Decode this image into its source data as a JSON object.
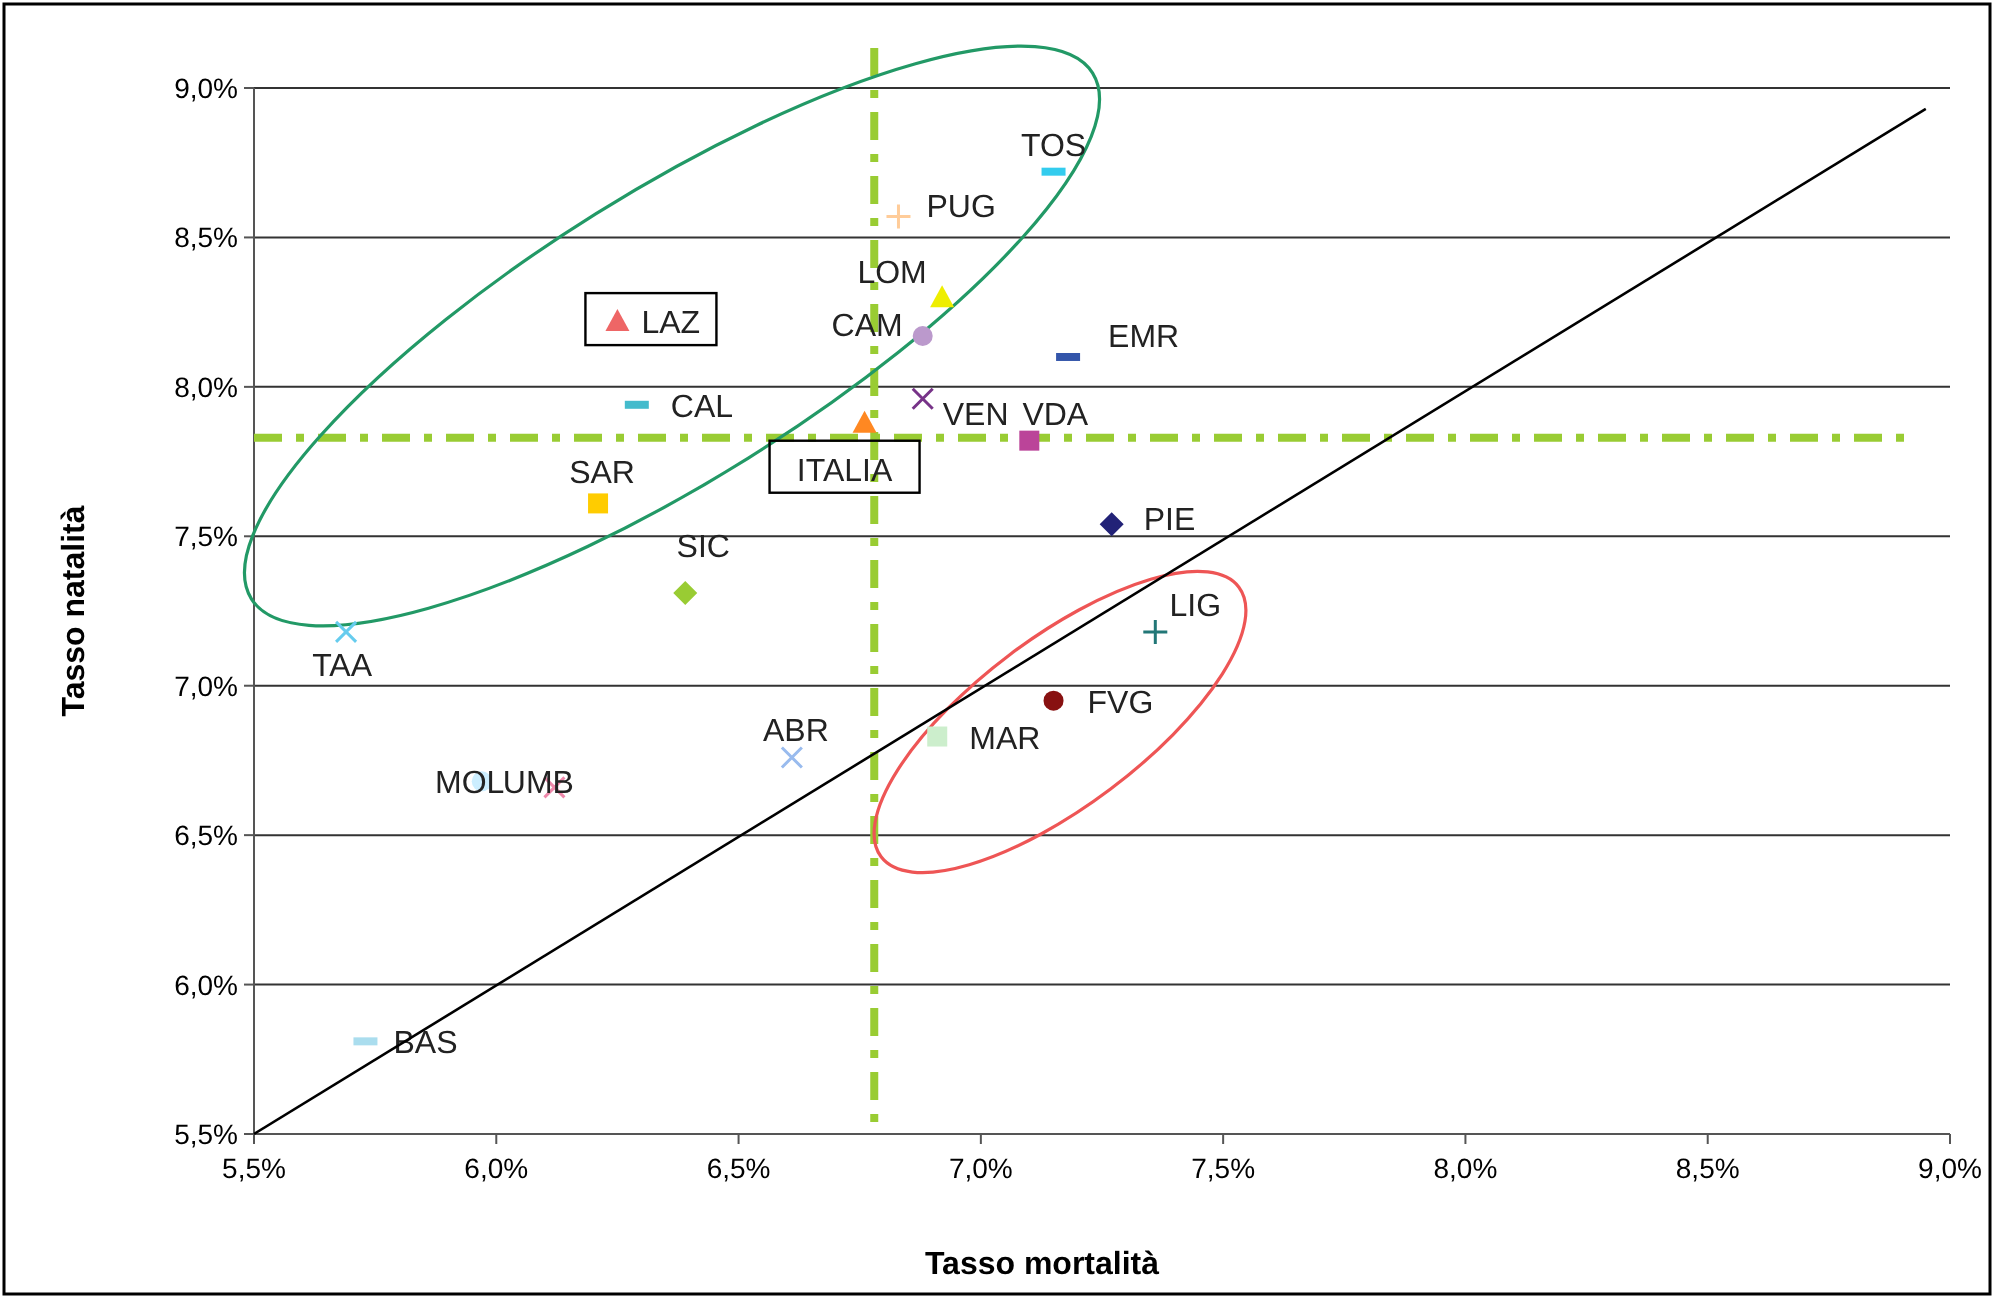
{
  "chart_data": {
    "type": "scatter",
    "xlabel": "Tasso mortalità",
    "ylabel": "Tasso natalità",
    "xlim": [
      5.5,
      9.0
    ],
    "ylim": [
      5.5,
      9.0
    ],
    "xticks": [
      {
        "value": 5.5,
        "label": "5,5%"
      },
      {
        "value": 6.0,
        "label": "6,0%"
      },
      {
        "value": 6.5,
        "label": "6,5%"
      },
      {
        "value": 7.0,
        "label": "7,0%"
      },
      {
        "value": 7.5,
        "label": "7,5%"
      },
      {
        "value": 8.0,
        "label": "8,0%"
      },
      {
        "value": 8.5,
        "label": "8,5%"
      },
      {
        "value": 9.0,
        "label": "9,0%"
      }
    ],
    "yticks": [
      {
        "value": 5.5,
        "label": "5,5%"
      },
      {
        "value": 6.0,
        "label": "6,0%"
      },
      {
        "value": 6.5,
        "label": "6,5%"
      },
      {
        "value": 7.0,
        "label": "7,0%"
      },
      {
        "value": 7.5,
        "label": "7,5%"
      },
      {
        "value": 8.0,
        "label": "8,0%"
      },
      {
        "value": 8.5,
        "label": "8,5%"
      },
      {
        "value": 9.0,
        "label": "9,0%"
      }
    ],
    "grid": "y",
    "ref_lines": [
      {
        "axis": "x",
        "value": 6.78,
        "color": "#99cc33",
        "line_style": "dashdot"
      },
      {
        "axis": "y",
        "value": 7.83,
        "color": "#99cc33",
        "line_style": "dashdot"
      }
    ],
    "series": [
      {
        "name": "TOS",
        "color": "#33ccee",
        "x": [
          7.15
        ],
        "values": [
          8.72
        ]
      },
      {
        "name": "PUG",
        "color": "#ffcc99",
        "marker": "plus",
        "x": [
          6.83
        ],
        "values": [
          8.57
        ]
      },
      {
        "name": "LOM",
        "color": "#eeee00",
        "marker": "triangle",
        "x": [
          6.92
        ],
        "values": [
          8.3
        ]
      },
      {
        "name": "CAM",
        "color": "#bb99cc",
        "marker": "circle",
        "x": [
          6.88
        ],
        "values": [
          8.17
        ]
      },
      {
        "name": "LAZ",
        "color": "#ee6666",
        "marker": "triangle",
        "x": [
          6.25
        ],
        "values": [
          8.22
        ]
      },
      {
        "name": "EMR",
        "color": "#3355aa",
        "x": [
          7.18
        ],
        "values": [
          8.1
        ]
      },
      {
        "name": "CAL",
        "color": "#44bbcc",
        "x": [
          6.29
        ],
        "values": [
          7.94
        ]
      },
      {
        "name": "VEN",
        "color": "#773388",
        "marker": "cross",
        "x": [
          6.88
        ],
        "values": [
          7.96
        ]
      },
      {
        "name": "ITALIA",
        "color": "#ff8822",
        "marker": "triangle",
        "x": [
          6.76
        ],
        "values": [
          7.88
        ]
      },
      {
        "name": "VDA",
        "color": "#bb4499",
        "marker": "square",
        "x": [
          7.1
        ],
        "values": [
          7.82
        ]
      },
      {
        "name": "SAR",
        "color": "#ffcc00",
        "marker": "square",
        "x": [
          6.21
        ],
        "values": [
          7.61
        ]
      },
      {
        "name": "PIE",
        "color": "#222277",
        "marker": "diamond",
        "x": [
          7.27
        ],
        "values": [
          7.54
        ]
      },
      {
        "name": "SIC",
        "color": "#99cc33",
        "marker": "diamond",
        "x": [
          6.39
        ],
        "values": [
          7.31
        ]
      },
      {
        "name": "TAA",
        "color": "#66ccee",
        "marker": "cross",
        "x": [
          5.69
        ],
        "values": [
          7.18
        ]
      },
      {
        "name": "LIG",
        "color": "#227777",
        "marker": "plus",
        "x": [
          7.36
        ],
        "values": [
          7.18
        ]
      },
      {
        "name": "FVG",
        "color": "#881111",
        "marker": "circle",
        "x": [
          7.15
        ],
        "values": [
          6.95
        ]
      },
      {
        "name": "MAR",
        "color": "#cceecc",
        "marker": "square",
        "x": [
          6.91
        ],
        "values": [
          6.83
        ]
      },
      {
        "name": "ABR",
        "color": "#99bbee",
        "marker": "cross",
        "x": [
          6.61
        ],
        "values": [
          6.76
        ]
      },
      {
        "name": "MOL",
        "color": "#cceeff",
        "marker": "circle",
        "x": [
          5.97
        ],
        "values": [
          6.68
        ]
      },
      {
        "name": "UMB",
        "color": "#ee88aa",
        "marker": "cross",
        "x": [
          6.12
        ],
        "values": [
          6.66
        ]
      },
      {
        "name": "BAS",
        "color": "#aaddee",
        "x": [
          5.73
        ],
        "values": [
          5.81
        ]
      },
      {
        "type": "line",
        "color": "#000000",
        "marker": "none",
        "x": [
          5.5,
          8.95
        ],
        "values": [
          5.5,
          8.93
        ]
      }
    ]
  }
}
